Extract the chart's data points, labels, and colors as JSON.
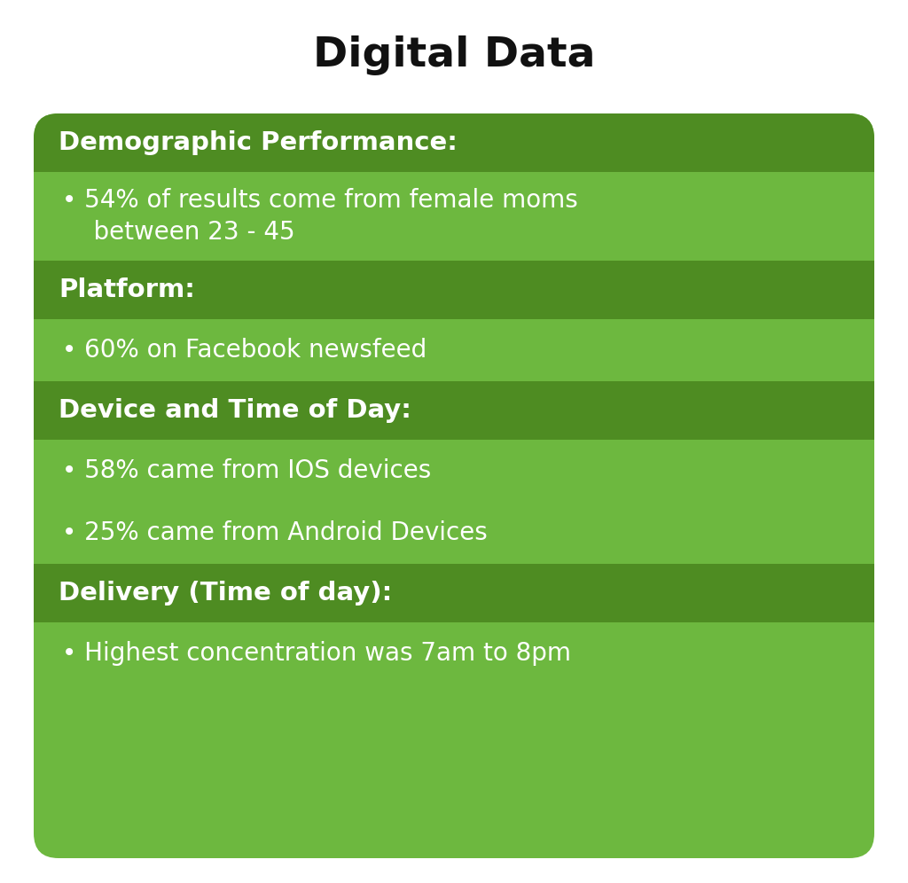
{
  "title": "Digital Data",
  "title_fontsize": 34,
  "title_color": "#111111",
  "background_color": "#ffffff",
  "card_color_light": "#6db83f",
  "card_color_dark": "#4e8c22",
  "header_color": "#4e8c22",
  "item_color": "#6db83f",
  "sections": [
    {
      "header": "Demographic Performance:",
      "items": [
        "54% of results come from female moms\n    between 23 - 45"
      ]
    },
    {
      "header": "Platform:",
      "items": [
        "60% on Facebook newsfeed"
      ]
    },
    {
      "header": "Device and Time of Day:",
      "items": [
        "58% came from IOS devices",
        "25% came from Android Devices"
      ]
    },
    {
      "header": "Delivery (Time of day):",
      "items": [
        "Highest concentration was 7am to 8pm"
      ]
    }
  ],
  "header_fontsize": 21,
  "item_fontsize": 20,
  "text_color": "#ffffff",
  "bullet": "• "
}
